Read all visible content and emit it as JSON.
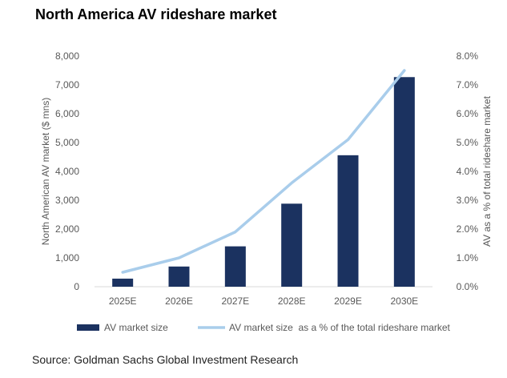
{
  "title": "North America AV rideshare market",
  "source": "Source: Goldman Sachs Global Investment Research",
  "chart_data": {
    "type": "bar",
    "categories": [
      "2025E",
      "2026E",
      "2027E",
      "2028E",
      "2029E",
      "2030E"
    ],
    "series": [
      {
        "name": "AV market size",
        "type": "bar",
        "axis": "left",
        "color": "#1b3260",
        "values": [
          280,
          700,
          1400,
          2880,
          4560,
          7270
        ]
      },
      {
        "name": "AV market size  as a % of the total rideshare market",
        "type": "line",
        "axis": "right",
        "color": "#a9cdeb",
        "values": [
          0.5,
          1.0,
          1.9,
          3.6,
          5.1,
          7.5
        ]
      }
    ],
    "ylabel": "North American AV market ($ mns)",
    "ylim": [
      0,
      8000
    ],
    "yticks": [
      "0",
      "1,000",
      "2,000",
      "3,000",
      "4,000",
      "5,000",
      "6,000",
      "7,000",
      "8,000"
    ],
    "y2label": "AV as a % of total rideshare market",
    "y2lim": [
      0,
      8
    ],
    "y2ticks": [
      "0.0%",
      "1.0%",
      "2.0%",
      "3.0%",
      "4.0%",
      "5.0%",
      "6.0%",
      "7.0%",
      "8.0%"
    ],
    "grid": false,
    "legend": "bottom"
  }
}
